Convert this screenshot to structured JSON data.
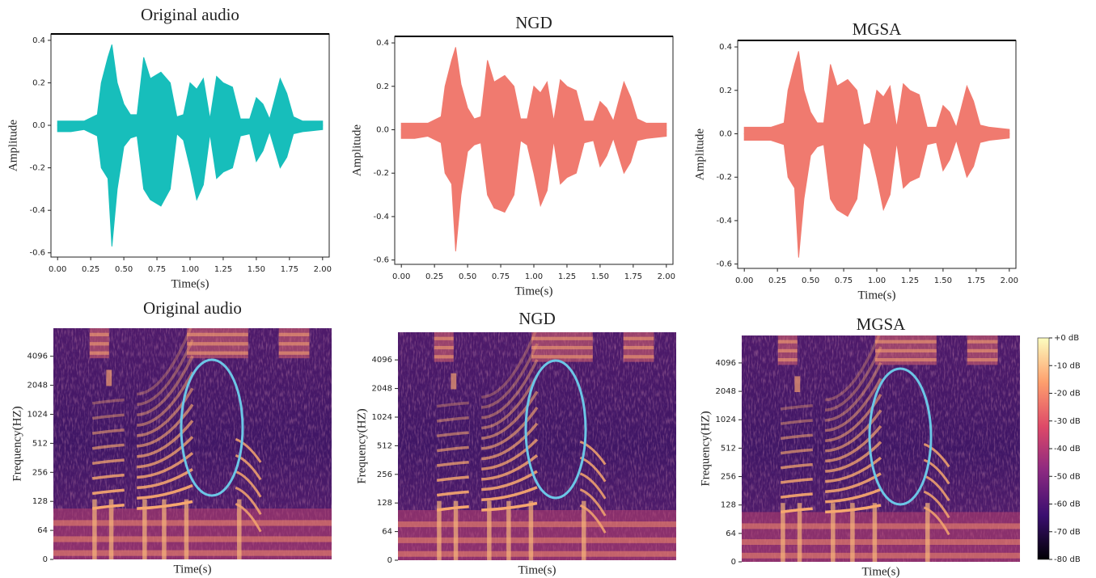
{
  "chart_data": [
    {
      "type": "waveform",
      "title": "Original audio",
      "xlabel": "Time(s)",
      "ylabel": "Amplitude",
      "color": "#17bebb",
      "xlim": [
        -0.05,
        2.05
      ],
      "ylim": [
        -0.62,
        0.43
      ],
      "xticks": [
        {
          "value": 0,
          "label": "0.00"
        },
        0.25,
        {
          "value": 0.5,
          "label": "0.50"
        },
        0.75,
        {
          "value": 1,
          "label": "1.00"
        },
        1.25,
        {
          "value": 1.5,
          "label": "1.50"
        },
        1.75,
        {
          "value": 2,
          "label": "2.00"
        }
      ],
      "yticks": [
        -0.6,
        -0.4,
        -0.2,
        {
          "value": 0,
          "label": "0.0"
        },
        0.2,
        0.4
      ],
      "x": [
        0,
        0.1,
        0.2,
        0.3,
        0.33,
        0.38,
        0.41,
        0.45,
        0.5,
        0.55,
        0.6,
        0.65,
        0.7,
        0.78,
        0.85,
        0.9,
        0.95,
        1.0,
        1.05,
        1.1,
        1.15,
        1.2,
        1.25,
        1.32,
        1.38,
        1.45,
        1.5,
        1.55,
        1.6,
        1.68,
        1.73,
        1.78,
        1.85,
        2.0
      ],
      "upper": [
        0.02,
        0.02,
        0.02,
        0.05,
        0.2,
        0.32,
        0.38,
        0.2,
        0.1,
        0.05,
        0.05,
        0.32,
        0.22,
        0.25,
        0.2,
        0.04,
        0.05,
        0.2,
        0.17,
        0.22,
        0.03,
        0.23,
        0.2,
        0.18,
        0.03,
        0.03,
        0.13,
        0.1,
        0.03,
        0.22,
        0.15,
        0.04,
        0.02,
        0.02
      ],
      "lower": [
        -0.03,
        -0.03,
        -0.02,
        -0.05,
        -0.2,
        -0.25,
        -0.57,
        -0.3,
        -0.1,
        -0.06,
        -0.05,
        -0.3,
        -0.35,
        -0.38,
        -0.3,
        -0.04,
        -0.07,
        -0.2,
        -0.35,
        -0.28,
        -0.04,
        -0.25,
        -0.22,
        -0.2,
        -0.05,
        -0.04,
        -0.17,
        -0.12,
        -0.03,
        -0.2,
        -0.15,
        -0.04,
        -0.03,
        -0.02
      ]
    },
    {
      "type": "waveform",
      "title": "NGD",
      "xlabel": "Time(s)",
      "ylabel": "Amplitude",
      "color": "#f07a6f",
      "xlim": [
        -0.05,
        2.05
      ],
      "ylim": [
        -0.62,
        0.43
      ],
      "xticks": [
        {
          "value": 0,
          "label": "0.00"
        },
        0.25,
        {
          "value": 0.5,
          "label": "0.50"
        },
        0.75,
        {
          "value": 1,
          "label": "1.00"
        },
        1.25,
        {
          "value": 1.5,
          "label": "1.50"
        },
        1.75,
        {
          "value": 2,
          "label": "2.00"
        }
      ],
      "yticks": [
        -0.6,
        -0.4,
        -0.2,
        {
          "value": 0,
          "label": "0.0"
        },
        0.2,
        0.4
      ],
      "x": [
        0,
        0.1,
        0.2,
        0.3,
        0.33,
        0.38,
        0.41,
        0.45,
        0.5,
        0.55,
        0.6,
        0.65,
        0.7,
        0.78,
        0.85,
        0.9,
        0.95,
        1.0,
        1.05,
        1.1,
        1.15,
        1.2,
        1.25,
        1.32,
        1.38,
        1.45,
        1.5,
        1.55,
        1.6,
        1.68,
        1.73,
        1.78,
        1.85,
        2.0
      ],
      "upper": [
        0.03,
        0.03,
        0.03,
        0.06,
        0.2,
        0.32,
        0.38,
        0.21,
        0.1,
        0.05,
        0.06,
        0.32,
        0.22,
        0.25,
        0.2,
        0.05,
        0.05,
        0.2,
        0.17,
        0.22,
        0.04,
        0.23,
        0.2,
        0.18,
        0.04,
        0.04,
        0.13,
        0.1,
        0.04,
        0.22,
        0.15,
        0.05,
        0.03,
        0.03
      ],
      "lower": [
        -0.04,
        -0.04,
        -0.03,
        -0.06,
        -0.2,
        -0.25,
        -0.56,
        -0.3,
        -0.1,
        -0.07,
        -0.06,
        -0.3,
        -0.36,
        -0.38,
        -0.3,
        -0.05,
        -0.07,
        -0.2,
        -0.35,
        -0.28,
        -0.05,
        -0.25,
        -0.22,
        -0.2,
        -0.06,
        -0.05,
        -0.17,
        -0.12,
        -0.04,
        -0.2,
        -0.15,
        -0.05,
        -0.04,
        -0.03
      ]
    },
    {
      "type": "waveform",
      "title": "MGSA",
      "xlabel": "Time(s)",
      "ylabel": "Amplitude",
      "color": "#f07a6f",
      "xlim": [
        -0.05,
        2.05
      ],
      "ylim": [
        -0.62,
        0.43
      ],
      "xticks": [
        {
          "value": 0,
          "label": "0.00"
        },
        0.25,
        {
          "value": 0.5,
          "label": "0.50"
        },
        0.75,
        {
          "value": 1,
          "label": "1.00"
        },
        1.25,
        {
          "value": 1.5,
          "label": "1.50"
        },
        1.75,
        {
          "value": 2,
          "label": "2.00"
        }
      ],
      "yticks": [
        -0.6,
        -0.4,
        -0.2,
        {
          "value": 0,
          "label": "0.0"
        },
        0.2,
        0.4
      ],
      "x": [
        0,
        0.1,
        0.2,
        0.3,
        0.33,
        0.38,
        0.41,
        0.45,
        0.5,
        0.55,
        0.6,
        0.65,
        0.7,
        0.78,
        0.85,
        0.9,
        0.95,
        1.0,
        1.05,
        1.1,
        1.15,
        1.2,
        1.25,
        1.32,
        1.38,
        1.45,
        1.5,
        1.55,
        1.6,
        1.68,
        1.73,
        1.78,
        1.85,
        2.0
      ],
      "upper": [
        0.03,
        0.03,
        0.03,
        0.05,
        0.2,
        0.32,
        0.38,
        0.2,
        0.1,
        0.05,
        0.05,
        0.32,
        0.22,
        0.25,
        0.2,
        0.04,
        0.05,
        0.2,
        0.17,
        0.22,
        0.03,
        0.23,
        0.2,
        0.18,
        0.03,
        0.03,
        0.13,
        0.1,
        0.03,
        0.22,
        0.15,
        0.04,
        0.03,
        0.02
      ],
      "lower": [
        -0.03,
        -0.03,
        -0.03,
        -0.05,
        -0.2,
        -0.25,
        -0.57,
        -0.3,
        -0.1,
        -0.06,
        -0.05,
        -0.3,
        -0.35,
        -0.38,
        -0.3,
        -0.04,
        -0.07,
        -0.2,
        -0.35,
        -0.28,
        -0.04,
        -0.25,
        -0.22,
        -0.2,
        -0.05,
        -0.04,
        -0.17,
        -0.12,
        -0.03,
        -0.2,
        -0.15,
        -0.04,
        -0.03,
        -0.02
      ]
    },
    {
      "type": "spectrogram",
      "title": "Original audio",
      "xlabel": "Time(s)",
      "ylabel": "Frequency(HZ)",
      "yscale": "symlog",
      "linthresh": 64,
      "ylim": [
        0,
        8000
      ],
      "yticks": [
        0,
        64,
        128,
        256,
        512,
        1024,
        2048,
        4096
      ]
    },
    {
      "type": "spectrogram",
      "title": "NGD",
      "xlabel": "Time(s)",
      "ylabel": "Frequency(HZ)",
      "yscale": "symlog",
      "linthresh": 64,
      "ylim": [
        0,
        8000
      ],
      "yticks": [
        0,
        64,
        128,
        256,
        512,
        1024,
        2048,
        4096
      ]
    },
    {
      "type": "spectrogram",
      "title": "MGSA",
      "xlabel": "Time(s)",
      "ylabel": "Frequency(HZ)",
      "yscale": "symlog",
      "linthresh": 64,
      "ylim": [
        0,
        8000
      ],
      "yticks": [
        0,
        64,
        128,
        256,
        512,
        1024,
        2048,
        4096
      ],
      "colorbar": {
        "colormap": [
          "#000004",
          "#3b0f70",
          "#8c2981",
          "#de4968",
          "#fe9f6d",
          "#fcfdbf"
        ],
        "lim": [
          -80,
          0
        ],
        "ticks": [
          {
            "value": 0,
            "label": "+0 dB"
          },
          {
            "value": -10,
            "label": "-10 dB"
          },
          {
            "value": -20,
            "label": "-20 dB"
          },
          {
            "value": -30,
            "label": "-30 dB"
          },
          {
            "value": -40,
            "label": "-40 dB"
          },
          {
            "value": -50,
            "label": "-50 dB"
          },
          {
            "value": -60,
            "label": "-60 dB"
          },
          {
            "value": -70,
            "label": "-70 dB"
          },
          {
            "value": -80,
            "label": "-80 dB"
          }
        ]
      }
    }
  ]
}
